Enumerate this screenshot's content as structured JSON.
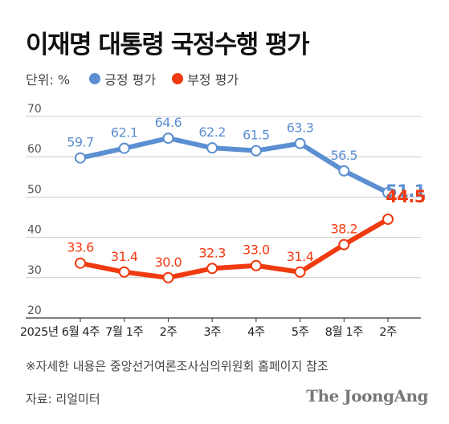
{
  "title": "이재명 대통령 국정수행 평가",
  "unit_label": "단위: %",
  "note": "※자세한 내용은 중앙선거여론조사심의위원회 홈페이지 참조",
  "source": "자료: 리얼미터",
  "brand": "The JoongAng",
  "colors": {
    "positive": "#5b8fd1",
    "negative": "#f03a10",
    "grid": "#cccccc"
  },
  "chart_data": {
    "type": "line",
    "categories": [
      "2025년 6월 4주",
      "7월 1주",
      "2주",
      "3주",
      "4주",
      "5주",
      "8월 1주",
      "2주"
    ],
    "series": [
      {
        "name": "긍정 평가",
        "values": [
          59.7,
          62.1,
          64.6,
          62.2,
          61.5,
          63.3,
          56.5,
          51.1
        ],
        "labels": [
          "59.7",
          "62.1",
          "64.6",
          "62.2",
          "61.5",
          "63.3",
          "56.5",
          "51.1"
        ]
      },
      {
        "name": "부정 평가",
        "values": [
          33.6,
          31.4,
          30.0,
          32.3,
          33.0,
          31.4,
          38.2,
          44.5
        ],
        "labels": [
          "33.6",
          "31.4",
          "30.0",
          "32.3",
          "33.0",
          "31.4",
          "38.2",
          "44.5"
        ]
      }
    ],
    "yticks": [
      "70",
      "60",
      "50",
      "40",
      "30",
      "20"
    ],
    "ylim": [
      20,
      70
    ],
    "grid": true,
    "legend": "top-left"
  }
}
